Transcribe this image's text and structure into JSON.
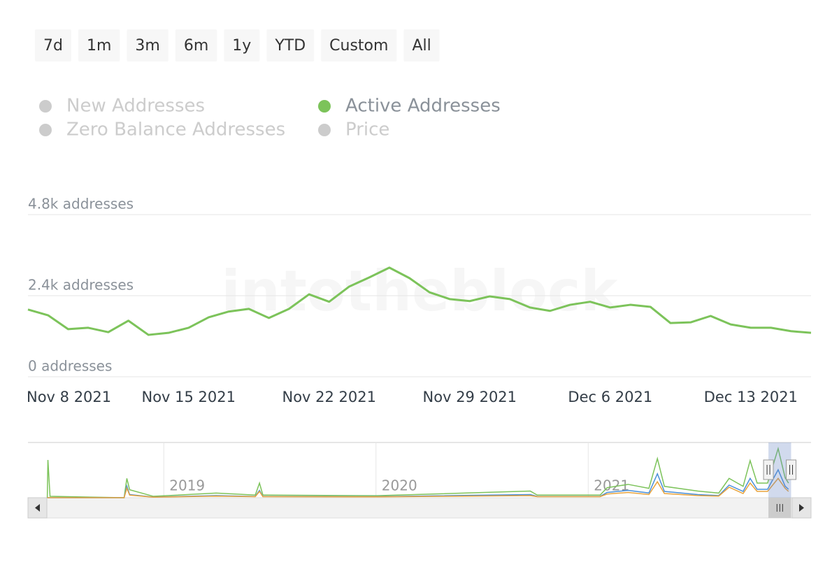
{
  "range_buttons": [
    "7d",
    "1m",
    "3m",
    "6m",
    "1y",
    "YTD",
    "Custom",
    "All"
  ],
  "chart_data": {
    "type": "line",
    "watermark": "intotheblock",
    "x": [
      "2021-11-07",
      "2021-11-08",
      "2021-11-09",
      "2021-11-10",
      "2021-11-11",
      "2021-11-12",
      "2021-11-13",
      "2021-11-14",
      "2021-11-15",
      "2021-11-16",
      "2021-11-17",
      "2021-11-18",
      "2021-11-19",
      "2021-11-20",
      "2021-11-21",
      "2021-11-22",
      "2021-11-23",
      "2021-11-24",
      "2021-11-25",
      "2021-11-26",
      "2021-11-27",
      "2021-11-28",
      "2021-11-29",
      "2021-11-30",
      "2021-12-01",
      "2021-12-02",
      "2021-12-03",
      "2021-12-04",
      "2021-12-05",
      "2021-12-06",
      "2021-12-07",
      "2021-12-08",
      "2021-12-09",
      "2021-12-10",
      "2021-12-11",
      "2021-12-12",
      "2021-12-13",
      "2021-12-14",
      "2021-12-15",
      "2021-12-16"
    ],
    "series": [
      {
        "name": "New Addresses",
        "visible": false
      },
      {
        "name": "Active Addresses",
        "color": "#7cc35a",
        "visible": true,
        "values": [
          1990,
          1820,
          1410,
          1450,
          1320,
          1660,
          1240,
          1300,
          1450,
          1760,
          1930,
          2010,
          1740,
          2010,
          2440,
          2220,
          2670,
          2940,
          3230,
          2920,
          2500,
          2300,
          2240,
          2380,
          2300,
          2050,
          1950,
          2130,
          2220,
          2050,
          2130,
          2070,
          1590,
          1610,
          1800,
          1550,
          1450,
          1450,
          1350,
          1300
        ]
      },
      {
        "name": "Zero Balance Addresses",
        "visible": false
      },
      {
        "name": "Price",
        "visible": false
      }
    ],
    "xlim": [
      "2021-11-07",
      "2021-12-16"
    ],
    "xticks": [
      {
        "value": "2021-11-08",
        "label": "Nov 8 2021"
      },
      {
        "value": "2021-11-15",
        "label": "Nov 15 2021"
      },
      {
        "value": "2021-11-22",
        "label": "Nov 22 2021"
      },
      {
        "value": "2021-11-29",
        "label": "Nov 29 2021"
      },
      {
        "value": "2021-12-06",
        "label": "Dec 6 2021"
      },
      {
        "value": "2021-12-13",
        "label": "Dec 13 2021"
      }
    ],
    "ylim": [
      0,
      4800
    ],
    "yticks": [
      {
        "value": 0,
        "label": "0 addresses"
      },
      {
        "value": 2400,
        "label": "2.4k addresses"
      },
      {
        "value": 4800,
        "label": "4.8k addresses"
      }
    ],
    "grid": true,
    "navigator": {
      "type": "line",
      "xlim": [
        2018.36,
        2022.05
      ],
      "xticks": [
        2019,
        2020,
        2021
      ],
      "ylim": [
        0,
        5000
      ],
      "x": [
        2018.451,
        2018.454,
        2018.464,
        2018.813,
        2018.826,
        2018.839,
        2018.951,
        2019.247,
        2019.431,
        2019.451,
        2019.467,
        2020.003,
        2020.727,
        2020.76,
        2021.056,
        2021.089,
        2021.188,
        2021.286,
        2021.326,
        2021.359,
        2021.516,
        2021.615,
        2021.664,
        2021.73,
        2021.763,
        2021.796,
        2021.845,
        2021.895,
        2021.928,
        2021.944
      ],
      "series": [
        {
          "color": "#7cc35a",
          "values": [
            0,
            3600,
            130,
            0,
            1840,
            760,
            130,
            440,
            250,
            1390,
            250,
            190,
            630,
            250,
            250,
            950,
            1270,
            890,
            3730,
            1080,
            630,
            440,
            1840,
            1080,
            3540,
            1390,
            1390,
            4680,
            1900,
            1390
          ]
        },
        {
          "color": "#4a90d9",
          "values": [
            0,
            0,
            0,
            0,
            1100,
            300,
            60,
            200,
            120,
            700,
            120,
            100,
            300,
            120,
            120,
            500,
            700,
            450,
            2280,
            600,
            300,
            200,
            1200,
            600,
            1840,
            800,
            800,
            2660,
            1100,
            800
          ]
        },
        {
          "color": "#e8a33c",
          "values": [
            0,
            0,
            0,
            0,
            900,
            250,
            50,
            150,
            100,
            600,
            100,
            80,
            200,
            100,
            100,
            350,
            500,
            300,
            1520,
            400,
            200,
            150,
            1000,
            400,
            1400,
            600,
            600,
            1840,
            900,
            600
          ]
        }
      ]
    }
  }
}
